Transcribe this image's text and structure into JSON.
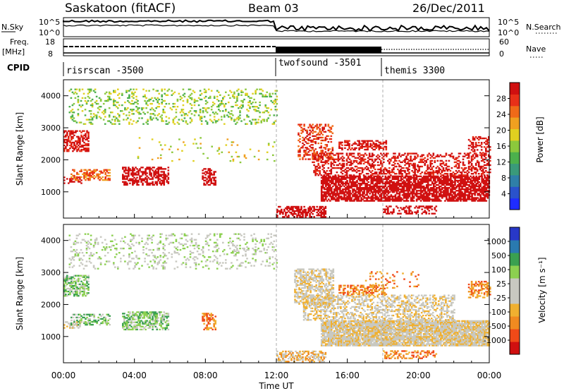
{
  "header": {
    "station": "Saskatoon (fitACF)",
    "beam": "Beam 03",
    "date": "26/Dec/2011"
  },
  "panels": {
    "nsky": {
      "label": "N.Sky",
      "ticks": [
        "10^5",
        "10^0"
      ],
      "right_label": "N.Search",
      "right_ticks": [
        "10^5",
        "10^0"
      ]
    },
    "freq": {
      "label_line1": "Freq.",
      "label_line2": "[MHz]",
      "ticks": [
        "18",
        "8"
      ],
      "right_label": "Nave",
      "right_ticks": [
        "60",
        "0"
      ]
    },
    "cpid": {
      "label": "CPID",
      "segments": [
        {
          "name": "risrscan -3500",
          "start_hour": 0
        },
        {
          "name": "twofsound -3501",
          "start_hour": 12
        },
        {
          "name": "themis 3300",
          "start_hour": 18
        }
      ]
    }
  },
  "colors": {
    "power": [
      "#1f2cff",
      "#2a52cc",
      "#2f7fa8",
      "#3a9a7a",
      "#4cb04c",
      "#8cc83c",
      "#e0d020",
      "#f0a020",
      "#f06a18",
      "#e83018",
      "#d01010"
    ],
    "velocity": [
      "#d01010",
      "#f04a18",
      "#f08a20",
      "#f0b030",
      "#c8c8c0",
      "#c8c8c0",
      "#8cd050",
      "#3aa050",
      "#2a7ab0",
      "#2838c8"
    ],
    "ground_scatter": "#c8c8c0"
  },
  "chart_data": [
    {
      "type": "heatmap",
      "name": "power",
      "xlabel": "",
      "ylabel": "Slant Range [km]",
      "xlim": [
        0,
        24
      ],
      "ylim": [
        180,
        4500
      ],
      "yticks": [
        1000,
        2000,
        3000,
        4000
      ],
      "colorbar": {
        "label": "Power [dB]",
        "range": [
          0,
          32
        ],
        "ticks": [
          "4",
          "8",
          "12",
          "16",
          "20",
          "24",
          "28"
        ]
      },
      "regions": [
        {
          "t0": 0.3,
          "t1": 12.0,
          "r0": 3100,
          "r1": 4200,
          "level": 5,
          "density": 0.18
        },
        {
          "t0": 0.0,
          "t1": 1.4,
          "r0": 2250,
          "r1": 2900,
          "level": 10,
          "density": 0.55
        },
        {
          "t0": 0.0,
          "t1": 1.0,
          "r0": 1250,
          "r1": 1450,
          "level": 12,
          "density": 0.4
        },
        {
          "t0": 0.4,
          "t1": 2.6,
          "r0": 1350,
          "r1": 1700,
          "level": 8,
          "density": 0.45
        },
        {
          "t0": 3.3,
          "t1": 5.9,
          "r0": 1200,
          "r1": 1750,
          "level": 14,
          "density": 0.55
        },
        {
          "t0": 7.8,
          "t1": 8.6,
          "r0": 1200,
          "r1": 1700,
          "level": 12,
          "density": 0.5
        },
        {
          "t0": 12.0,
          "t1": 14.8,
          "r0": 200,
          "r1": 550,
          "level": 12,
          "density": 0.55
        },
        {
          "t0": 14.5,
          "t1": 24.0,
          "r0": 700,
          "r1": 1500,
          "level": 19,
          "density": 0.75
        },
        {
          "t0": 14.0,
          "t1": 24.0,
          "r0": 1500,
          "r1": 2200,
          "level": 10,
          "density": 0.4
        },
        {
          "t0": 15.5,
          "t1": 18.2,
          "r0": 2300,
          "r1": 2600,
          "level": 10,
          "density": 0.5
        },
        {
          "t0": 13.2,
          "t1": 15.2,
          "r0": 2000,
          "r1": 3100,
          "level": 9,
          "density": 0.35
        },
        {
          "t0": 22.8,
          "t1": 24.0,
          "r0": 2200,
          "r1": 2700,
          "level": 10,
          "density": 0.4
        },
        {
          "t0": 18.0,
          "t1": 21.0,
          "r0": 300,
          "r1": 550,
          "level": 18,
          "density": 0.4
        },
        {
          "t0": 4.0,
          "t1": 12.0,
          "r0": 1900,
          "r1": 2700,
          "level": 6,
          "density": 0.04
        }
      ]
    },
    {
      "type": "heatmap",
      "name": "velocity",
      "xlabel": "Time UT",
      "ylabel": "Slant Range [km]",
      "xlim": [
        0,
        24
      ],
      "ylim": [
        180,
        4500
      ],
      "yticks": [
        1000,
        2000,
        3000,
        4000
      ],
      "xticks": [
        "00:00",
        "04:00",
        "08:00",
        "12:00",
        "16:00",
        "20:00",
        "00:00"
      ],
      "colorbar": {
        "label": "Velocity [m s⁻¹]",
        "ticks": [
          "1000",
          "500",
          "100",
          "25",
          "-25",
          "-100",
          "-500",
          "-1000"
        ]
      },
      "regions": [
        {
          "t0": 0.3,
          "t1": 12.0,
          "r0": 3100,
          "r1": 4200,
          "level": 5,
          "density": 0.16
        },
        {
          "t0": 0.0,
          "t1": 1.4,
          "r0": 2250,
          "r1": 2900,
          "level": 6,
          "density": 0.55
        },
        {
          "t0": 0.0,
          "t1": 1.0,
          "r0": 1250,
          "r1": 1450,
          "level": 4,
          "density": 0.4
        },
        {
          "t0": 0.4,
          "t1": 2.6,
          "r0": 1350,
          "r1": 1700,
          "level": 6,
          "density": 0.45
        },
        {
          "t0": 3.3,
          "t1": 5.9,
          "r0": 1200,
          "r1": 1750,
          "level": 6,
          "density": 0.55
        },
        {
          "t0": 7.8,
          "t1": 8.6,
          "r0": 1200,
          "r1": 1700,
          "level": 2,
          "density": 0.5
        },
        {
          "t0": 12.0,
          "t1": 14.8,
          "r0": 200,
          "r1": 550,
          "level": 3,
          "density": 0.55
        },
        {
          "t0": 14.5,
          "t1": 24.0,
          "r0": 700,
          "r1": 1500,
          "level": 4,
          "density": 0.9
        },
        {
          "t0": 13.5,
          "t1": 22.0,
          "r0": 1500,
          "r1": 2300,
          "level": 4,
          "density": 0.45
        },
        {
          "t0": 15.5,
          "t1": 18.2,
          "r0": 2300,
          "r1": 2600,
          "level": 2,
          "density": 0.5
        },
        {
          "t0": 13.0,
          "t1": 15.2,
          "r0": 2000,
          "r1": 3100,
          "level": 4,
          "density": 0.55
        },
        {
          "t0": 22.8,
          "t1": 24.0,
          "r0": 2200,
          "r1": 2700,
          "level": 2,
          "density": 0.45
        },
        {
          "t0": 18.0,
          "t1": 21.0,
          "r0": 300,
          "r1": 550,
          "level": 2,
          "density": 0.35
        },
        {
          "t0": 17.0,
          "t1": 20.0,
          "r0": 2500,
          "r1": 3000,
          "level": 2,
          "density": 0.12
        }
      ]
    }
  ]
}
